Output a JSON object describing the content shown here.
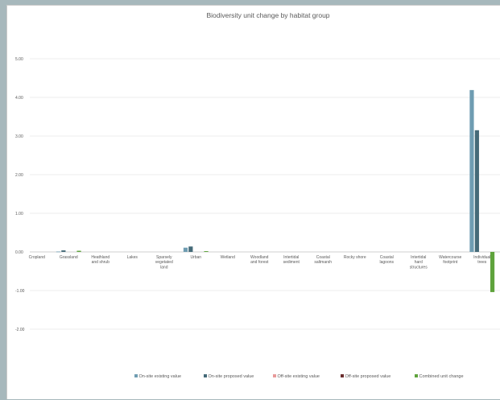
{
  "colors": {
    "onsite_existing": "#6f9db2",
    "onsite_proposed": "#456a78",
    "offsite_existing": "#e89a9a",
    "offsite_proposed": "#6b2e2e",
    "combined": "#5fa33c",
    "grid": "#ededed",
    "axis": "#cfcfcf"
  },
  "chart_data": {
    "type": "bar",
    "title": "Biodiversity unit change by habitat group",
    "xlabel": "",
    "ylabel": "",
    "ylim": [
      -2.0,
      5.0
    ],
    "yticks": [
      "5.00",
      "4.00",
      "3.00",
      "2.00",
      "1.00",
      "0.00",
      "-1.00",
      "-2.00"
    ],
    "grid": true,
    "legend_position": "bottom",
    "categories": [
      "Cropland",
      "Grassland",
      "Heathland and shrub",
      "Lakes",
      "Sparsely vegetated land",
      "Urban",
      "Wetland",
      "Woodland and forest",
      "Intertidal sediment",
      "Coastal saltmarsh",
      "Rocky shore",
      "Coastal lagoons",
      "Intertidal hard structures",
      "Watercourse footprint",
      "Individual trees"
    ],
    "category_lines": [
      [
        "Cropland"
      ],
      [
        "Grassland"
      ],
      [
        "Heathland",
        "and shrub"
      ],
      [
        "Lakes"
      ],
      [
        "Sparsely",
        "vegetated",
        "land"
      ],
      [
        "Urban"
      ],
      [
        "Wetland"
      ],
      [
        "Woodland",
        "and forest"
      ],
      [
        "Intertidal",
        "sediment"
      ],
      [
        "Coastal",
        "saltmarsh"
      ],
      [
        "Rocky shore"
      ],
      [
        "Coastal",
        "lagoons"
      ],
      [
        "Intertidal",
        "hard",
        "structures"
      ],
      [
        "Watercourse",
        "footprint"
      ],
      [
        "Individual",
        "trees"
      ]
    ],
    "series": [
      {
        "name": "On-site existing value",
        "color_key": "onsite_existing",
        "values": [
          0,
          0.01,
          0,
          0,
          0,
          0.11,
          0,
          0,
          0,
          0,
          0,
          0,
          0,
          0,
          4.19
        ]
      },
      {
        "name": "On-site proposed value",
        "color_key": "onsite_proposed",
        "values": [
          0,
          0.04,
          0,
          0,
          0,
          0.14,
          0,
          0,
          0,
          0,
          0,
          0,
          0,
          0,
          3.15
        ]
      },
      {
        "name": "Off-site existing value",
        "color_key": "offsite_existing",
        "values": [
          0,
          0,
          0,
          0,
          0,
          0,
          0,
          0,
          0,
          0,
          0,
          0,
          0,
          0,
          0
        ]
      },
      {
        "name": "Off-site proposed value",
        "color_key": "offsite_proposed",
        "values": [
          0,
          0,
          0,
          0,
          0,
          0,
          0,
          0,
          0,
          0,
          0,
          0,
          0,
          0,
          0
        ]
      },
      {
        "name": "Combined unit change",
        "color_key": "combined",
        "values": [
          0,
          0.03,
          0,
          0,
          0,
          0.02,
          0,
          0,
          0,
          0,
          0,
          0,
          0,
          0,
          -1.04
        ]
      }
    ]
  }
}
